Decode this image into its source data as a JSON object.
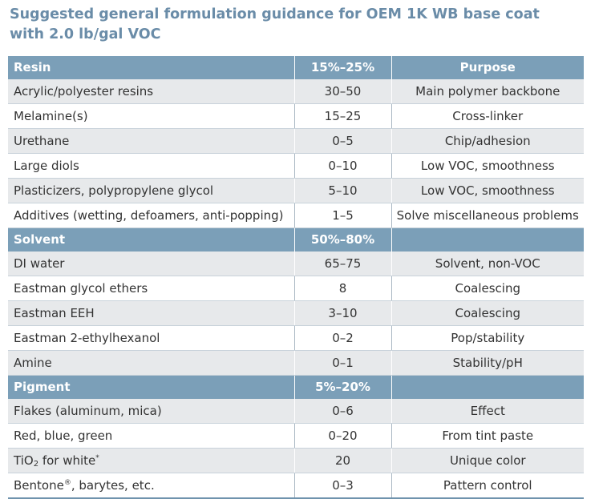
{
  "title": {
    "line1": "Suggested general formulation guidance for OEM 1K WB base coat",
    "line2": "with 2.0 lb/gal VOC"
  },
  "sections": [
    {
      "name": "Resin",
      "range": "15%–25%",
      "purpose_header": "Purpose",
      "rows": [
        {
          "ingredient": "Acrylic/polyester resins",
          "amount": "30–50",
          "purpose": "Main polymer backbone"
        },
        {
          "ingredient": "Melamine(s)",
          "amount": "15–25",
          "purpose": "Cross-linker"
        },
        {
          "ingredient": "Urethane",
          "amount": "0–5",
          "purpose": "Chip/adhesion"
        },
        {
          "ingredient": "Large diols",
          "amount": "0–10",
          "purpose": "Low VOC, smoothness"
        },
        {
          "ingredient": "Plasticizers, polypropylene glycol",
          "amount": "5–10",
          "purpose": "Low VOC, smoothness"
        },
        {
          "ingredient": "Additives (wetting, defoamers, anti-popping)",
          "amount": "1–5",
          "purpose": "Solve miscellaneous problems"
        }
      ]
    },
    {
      "name": "Solvent",
      "range": "50%–80%",
      "purpose_header": "",
      "rows": [
        {
          "ingredient": "DI water",
          "amount": "65–75",
          "purpose": "Solvent, non-VOC"
        },
        {
          "ingredient": "Eastman glycol ethers",
          "amount": "8",
          "purpose": "Coalescing"
        },
        {
          "ingredient": "Eastman EEH",
          "amount": "3–10",
          "purpose": "Coalescing"
        },
        {
          "ingredient": "Eastman 2-ethylhexanol",
          "amount": "0–2",
          "purpose": "Pop/stability"
        },
        {
          "ingredient": "Amine",
          "amount": "0–1",
          "purpose": "Stability/pH"
        }
      ]
    },
    {
      "name": "Pigment",
      "range": "5%–20%",
      "purpose_header": "",
      "rows": [
        {
          "ingredient": "Flakes (aluminum, mica)",
          "amount": "0–6",
          "purpose": "Effect"
        },
        {
          "ingredient": "Red, blue, green",
          "amount": "0–20",
          "purpose": "From tint paste"
        },
        {
          "ingredient_parts": {
            "base": "TiO",
            "sub": "2",
            "rest": " for white",
            "mark": "*"
          },
          "amount": "20",
          "purpose": "Unique color"
        },
        {
          "ingredient_parts": {
            "base": "Bentone",
            "sub": "",
            "rest": ", barytes, etc.",
            "mark": "®"
          },
          "amount": "0–3",
          "purpose": "Pattern control"
        }
      ]
    }
  ],
  "colors": {
    "title": "#6a8ca8",
    "header_bg": "#7b9fb8",
    "header_text": "#ffffff",
    "row_shade": "#e7e9eb",
    "body_text": "#333333"
  }
}
